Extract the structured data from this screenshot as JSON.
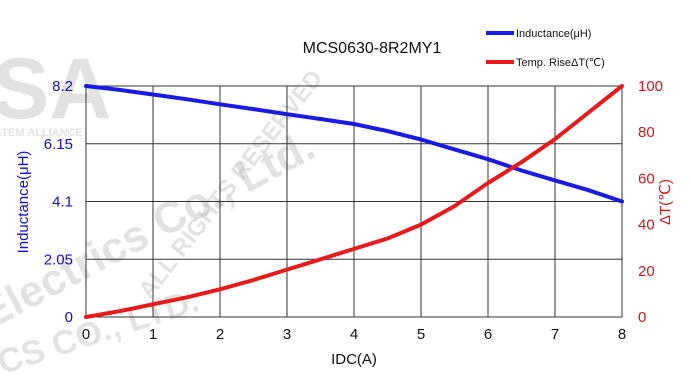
{
  "chart_data": {
    "type": "line",
    "title": "MCS0630-8R2MY1",
    "xlabel": "IDC(A)",
    "ylabel_left": "Inductance(μH)",
    "ylabel_right": "ΔT(℃)",
    "xlim": [
      0,
      8
    ],
    "ylim_left": [
      0,
      8.2
    ],
    "ylim_right": [
      0,
      100
    ],
    "x_ticks": [
      "0",
      "1",
      "2",
      "3",
      "4",
      "5",
      "6",
      "7",
      "8"
    ],
    "y_left_ticks": [
      "0",
      "2.05",
      "4.1",
      "6.15",
      "8.2"
    ],
    "y_right_ticks": [
      "0",
      "20",
      "40",
      "60",
      "80",
      "100"
    ],
    "grid": true,
    "legend_position": "top-right",
    "series": [
      {
        "name": "Inductance(μH)",
        "axis": "left",
        "color": "#1a1ae6",
        "x": [
          0,
          0.5,
          1,
          1.5,
          2,
          2.5,
          3,
          3.5,
          4,
          4.5,
          5,
          5.5,
          6,
          6.5,
          7,
          7.5,
          8
        ],
        "y": [
          8.2,
          8.06,
          7.9,
          7.73,
          7.55,
          7.38,
          7.2,
          7.03,
          6.85,
          6.6,
          6.3,
          5.95,
          5.6,
          5.2,
          4.85,
          4.5,
          4.1
        ]
      },
      {
        "name": "Temp. RiseΔT(℃)",
        "axis": "right",
        "color": "#e61a1a",
        "x": [
          0,
          0.5,
          1,
          1.5,
          2,
          2.5,
          3,
          3.5,
          4,
          4.5,
          5,
          5.5,
          6,
          6.5,
          7,
          7.5,
          8
        ],
        "y": [
          0,
          2.5,
          5.5,
          8.5,
          12,
          16,
          20.5,
          25,
          29.5,
          34,
          40,
          48,
          58,
          67,
          77,
          88.5,
          100
        ]
      }
    ],
    "watermarks": [
      "SA",
      "STEM ALLIANCE",
      "Electrics Co., Ltd.",
      "ALL RIGHTS RESERVED",
      "RICS CO., LTD."
    ]
  }
}
